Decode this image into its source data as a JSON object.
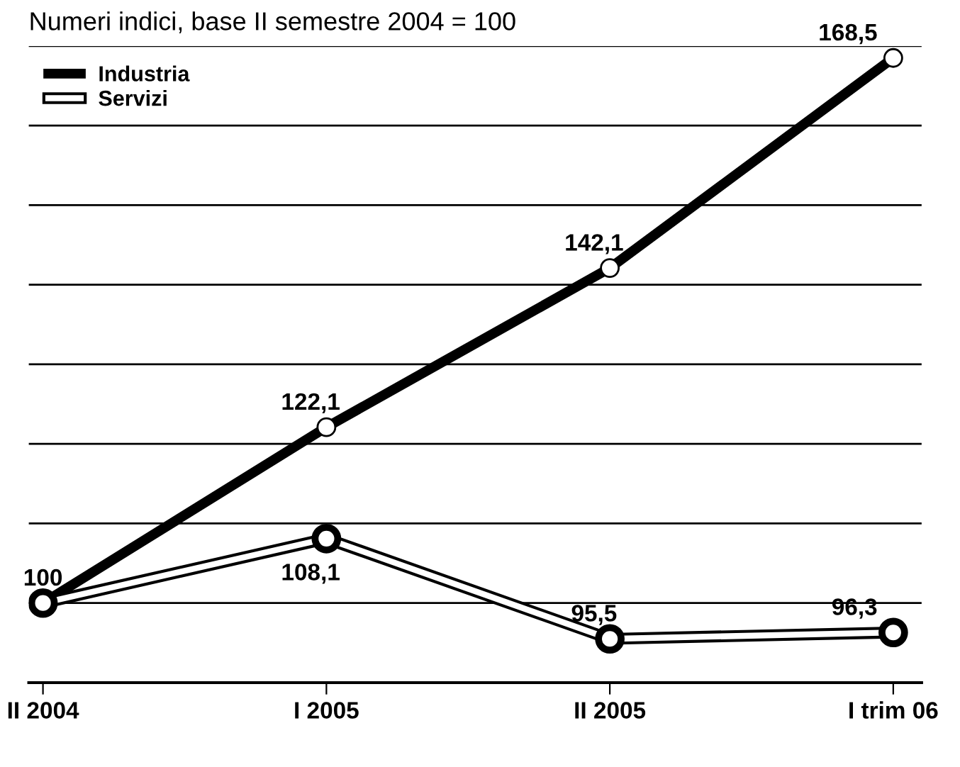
{
  "chart_data": {
    "type": "line",
    "title": "Numeri indici, base II semestre 2004 = 100",
    "categories": [
      "II 2004",
      "I 2005",
      "II 2005",
      "I trim 06"
    ],
    "series": [
      {
        "name": "Industria",
        "color": "#000000",
        "values": [
          100,
          122.1,
          142.1,
          168.5
        ],
        "value_labels": [
          "100",
          "122,1",
          "142,1",
          "168,5"
        ]
      },
      {
        "name": "Servizi",
        "color": "#ffffff",
        "values": [
          100,
          108.1,
          95.5,
          96.3
        ],
        "value_labels": [
          null,
          "108,1",
          "95,5",
          "96,3"
        ]
      }
    ],
    "ylim": [
      90,
      170
    ],
    "yticks": [
      {
        "value": 90,
        "label": null
      },
      {
        "value": 100,
        "label": null
      },
      {
        "value": 110,
        "label": null
      },
      {
        "value": 120,
        "label": null
      },
      {
        "value": 130,
        "label": null
      },
      {
        "value": 140,
        "label": null
      },
      {
        "value": 150,
        "label": null
      },
      {
        "value": 160,
        "label": null
      },
      {
        "value": 170,
        "label": null
      }
    ],
    "grid": "y",
    "legend": "top left",
    "marker": "circle",
    "line_style": "solid"
  }
}
